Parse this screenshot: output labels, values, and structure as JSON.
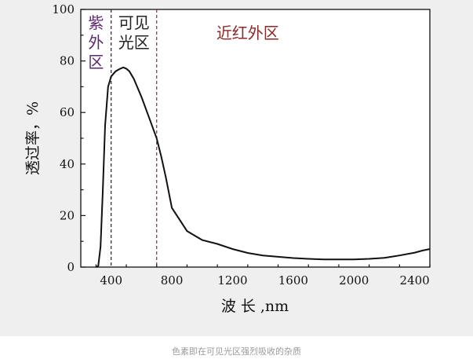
{
  "caption": "色素即在可见光区强烈吸收的杂质",
  "colors": {
    "uv": "#5b2a6e",
    "visible": "#222222",
    "nir": "#8b2b2b",
    "curve": "#111111",
    "panel": "#efefef"
  },
  "chart_data": {
    "type": "line",
    "title": "",
    "xlabel": "波 长 ,nm",
    "ylabel": "透过率，%",
    "xlim": [
      200,
      2500
    ],
    "ylim": [
      0,
      100
    ],
    "xticks": [
      400,
      800,
      1200,
      1600,
      2000,
      2400
    ],
    "yticks": [
      0,
      20,
      40,
      60,
      80,
      100
    ],
    "grid": false,
    "regions": [
      {
        "label_lines": [
          "紫",
          "外",
          "区"
        ],
        "color_key": "uv"
      },
      {
        "label_lines": [
          "可见",
          "光区"
        ],
        "color_key": "visible"
      },
      {
        "label_lines": [
          "近红外区"
        ],
        "color_key": "nir"
      }
    ],
    "boundaries": [
      400,
      700
    ],
    "series": [
      {
        "x": [
          300,
          315,
          330,
          345,
          360,
          380,
          400,
          430,
          460,
          480,
          500,
          520,
          550,
          600,
          650,
          700,
          730,
          760,
          800,
          900,
          1000,
          1100,
          1200,
          1300,
          1400,
          1500,
          1600,
          1700,
          1800,
          1900,
          2000,
          2100,
          2200,
          2300,
          2400,
          2450,
          2500
        ],
        "y": [
          0,
          0.5,
          8,
          30,
          55,
          70,
          74,
          76,
          77,
          77.5,
          77,
          76,
          73,
          66,
          58,
          50,
          43,
          35,
          23,
          14,
          10.5,
          9,
          7,
          5.5,
          4.5,
          4,
          3.5,
          3.2,
          3,
          3,
          3,
          3.2,
          3.6,
          4.5,
          5.6,
          6.4,
          7
        ]
      }
    ]
  }
}
